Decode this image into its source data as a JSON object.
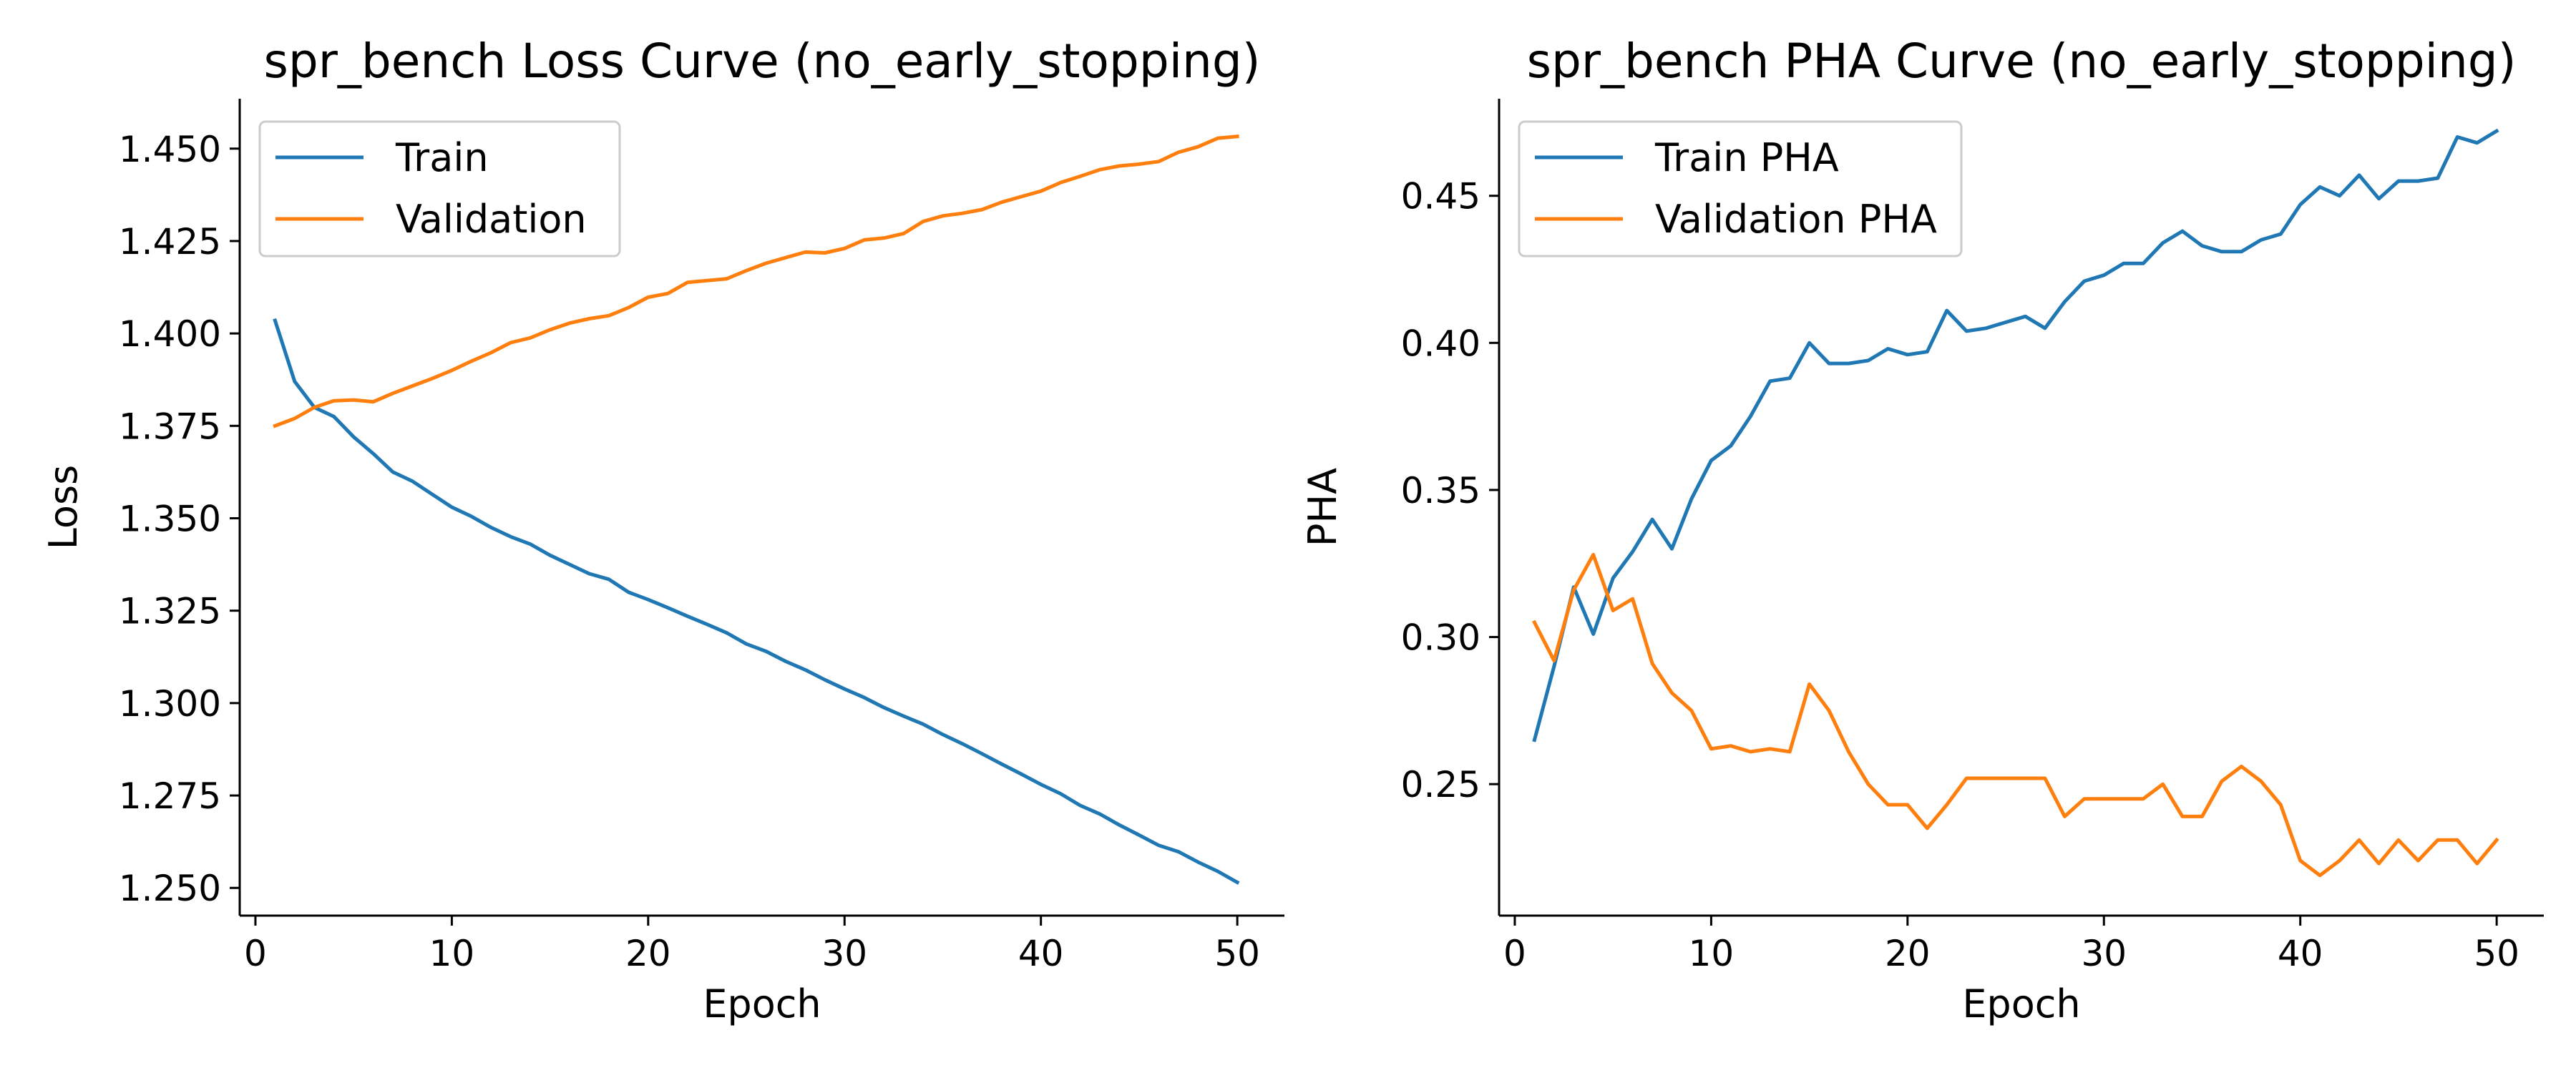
{
  "chart_data": [
    {
      "type": "line",
      "title": "spr_bench Loss Curve (no_early_stopping)",
      "xlabel": "Epoch",
      "ylabel": "Loss",
      "xlim": [
        -0.8,
        52.4
      ],
      "ylim": [
        1.2425,
        1.4635
      ],
      "xticks": [
        "0",
        "10",
        "20",
        "30",
        "40",
        "50"
      ],
      "yticks": [
        "1.250",
        "1.275",
        "1.300",
        "1.325",
        "1.350",
        "1.375",
        "1.400",
        "1.425",
        "1.450"
      ],
      "grid": false,
      "legend_position": "upper-left",
      "x": [
        1,
        2,
        3,
        4,
        5,
        6,
        7,
        8,
        9,
        10,
        11,
        12,
        13,
        14,
        15,
        16,
        17,
        18,
        19,
        20,
        21,
        22,
        23,
        24,
        25,
        26,
        27,
        28,
        29,
        30,
        31,
        32,
        33,
        34,
        35,
        36,
        37,
        38,
        39,
        40,
        41,
        42,
        43,
        44,
        45,
        46,
        47,
        48,
        49,
        50
      ],
      "series": [
        {
          "name": "Train",
          "color": "#1f77b4",
          "values": [
            1.4035,
            1.387,
            1.38,
            1.3775,
            1.372,
            1.3675,
            1.3625,
            1.36,
            1.3565,
            1.353,
            1.3505,
            1.3475,
            1.345,
            1.343,
            1.34,
            1.3375,
            1.335,
            1.3335,
            1.33,
            1.328,
            1.3258,
            1.3235,
            1.3213,
            1.319,
            1.316,
            1.314,
            1.3113,
            1.309,
            1.3063,
            1.3038,
            1.3015,
            1.2988,
            1.2965,
            1.2943,
            1.2915,
            1.289,
            1.2863,
            1.2835,
            1.2808,
            1.278,
            1.2755,
            1.2723,
            1.27,
            1.267,
            1.2643,
            1.2615,
            1.2598,
            1.257,
            1.2545,
            1.2515
          ]
        },
        {
          "name": "Validation",
          "color": "#ff7f0e",
          "values": [
            1.375,
            1.377,
            1.38,
            1.3818,
            1.382,
            1.3815,
            1.3838,
            1.3858,
            1.3878,
            1.39,
            1.3925,
            1.3948,
            1.3975,
            1.3988,
            1.401,
            1.4028,
            1.404,
            1.4048,
            1.407,
            1.4098,
            1.4108,
            1.4138,
            1.4143,
            1.4148,
            1.417,
            1.419,
            1.4205,
            1.422,
            1.4218,
            1.423,
            1.4253,
            1.4258,
            1.427,
            1.4303,
            1.4318,
            1.4325,
            1.4335,
            1.4355,
            1.437,
            1.4385,
            1.4408,
            1.4425,
            1.4443,
            1.4453,
            1.4458,
            1.4465,
            1.449,
            1.4505,
            1.4528,
            1.4533
          ]
        }
      ]
    },
    {
      "type": "line",
      "title": "spr_bench PHA Curve (no_early_stopping)",
      "xlabel": "Epoch",
      "ylabel": "PHA",
      "xlim": [
        -0.8,
        52.4
      ],
      "ylim": [
        0.2053,
        0.483
      ],
      "xticks": [
        "0",
        "10",
        "20",
        "30",
        "40",
        "50"
      ],
      "yticks": [
        "0.25",
        "0.30",
        "0.35",
        "0.40",
        "0.45"
      ],
      "grid": false,
      "legend_position": "upper-left",
      "x": [
        1,
        2,
        3,
        4,
        5,
        6,
        7,
        8,
        9,
        10,
        11,
        12,
        13,
        14,
        15,
        16,
        17,
        18,
        19,
        20,
        21,
        22,
        23,
        24,
        25,
        26,
        27,
        28,
        29,
        30,
        31,
        32,
        33,
        34,
        35,
        36,
        37,
        38,
        39,
        40,
        41,
        42,
        43,
        44,
        45,
        46,
        47,
        48,
        49,
        50
      ],
      "series": [
        {
          "name": "Train PHA",
          "color": "#1f77b4",
          "values": [
            0.265,
            0.29,
            0.317,
            0.301,
            0.32,
            0.329,
            0.34,
            0.33,
            0.347,
            0.36,
            0.365,
            0.375,
            0.387,
            0.388,
            0.4,
            0.393,
            0.393,
            0.394,
            0.398,
            0.396,
            0.397,
            0.411,
            0.404,
            0.405,
            0.407,
            0.409,
            0.405,
            0.414,
            0.421,
            0.423,
            0.427,
            0.427,
            0.434,
            0.438,
            0.433,
            0.431,
            0.431,
            0.435,
            0.437,
            0.447,
            0.453,
            0.45,
            0.457,
            0.449,
            0.455,
            0.455,
            0.456,
            0.47,
            0.468,
            0.472
          ]
        },
        {
          "name": "Validation PHA",
          "color": "#ff7f0e",
          "values": [
            0.305,
            0.292,
            0.316,
            0.328,
            0.309,
            0.313,
            0.291,
            0.281,
            0.275,
            0.262,
            0.263,
            0.261,
            0.262,
            0.261,
            0.284,
            0.275,
            0.261,
            0.25,
            0.243,
            0.243,
            0.235,
            0.243,
            0.252,
            0.252,
            0.252,
            0.252,
            0.252,
            0.239,
            0.245,
            0.245,
            0.245,
            0.245,
            0.25,
            0.239,
            0.239,
            0.251,
            0.256,
            0.251,
            0.243,
            0.224,
            0.219,
            0.224,
            0.231,
            0.223,
            0.231,
            0.224,
            0.231,
            0.231,
            0.223,
            0.231
          ]
        }
      ]
    }
  ]
}
